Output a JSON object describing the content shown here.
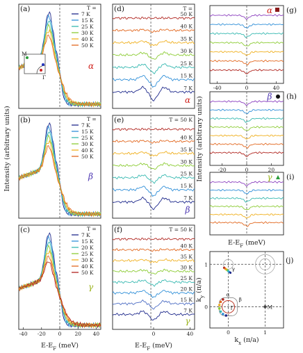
{
  "colors": {
    "series": [
      "#1f2a8c",
      "#2f8fd8",
      "#35b8b0",
      "#8ccc34",
      "#f0b020",
      "#e2671e",
      "#b0241e"
    ],
    "alpha": "#d0231e",
    "beta": "#4a33b0",
    "gamma": "#9ab21a"
  },
  "shared": {
    "y_label_main": "Intensity (arbitrary units)",
    "y_label_right": "Intensity (arbitrary units)",
    "x_label": "E-E_F (meV)",
    "x_label_right": "E-E_F (meV)"
  },
  "chart_data": [
    {
      "panel": "(a)",
      "type": "line",
      "band": "α",
      "legend_title": "T =",
      "series": [
        {
          "name": "7 K"
        },
        {
          "name": "15 K"
        },
        {
          "name": "25 K"
        },
        {
          "name": "30 K"
        },
        {
          "name": "40 K"
        },
        {
          "name": "50 K"
        }
      ],
      "xlim": [
        -45,
        45
      ],
      "peak_energy": -12,
      "inset_labels": [
        "M",
        "Γ"
      ]
    },
    {
      "panel": "(b)",
      "type": "line",
      "band": "β",
      "legend_title": "T =",
      "series": [
        {
          "name": "7 K"
        },
        {
          "name": "15 K"
        },
        {
          "name": "25 K"
        },
        {
          "name": "30 K"
        },
        {
          "name": "40 K"
        },
        {
          "name": "50 K"
        }
      ],
      "xlim": [
        -45,
        45
      ],
      "peak_energy": -12
    },
    {
      "panel": "(c)",
      "type": "line",
      "band": "γ",
      "legend_title": "T =",
      "series": [
        {
          "name": "7 K"
        },
        {
          "name": "15 K"
        },
        {
          "name": "20 K"
        },
        {
          "name": "25 K"
        },
        {
          "name": "30 K"
        },
        {
          "name": "40 K"
        },
        {
          "name": "50 K"
        }
      ],
      "xlim": [
        -45,
        45
      ],
      "x_ticks": [
        -40,
        -20,
        0,
        20,
        40
      ],
      "peak_energy": -12
    },
    {
      "panel": "(d)",
      "type": "line",
      "band": "α",
      "legend_title": "T =",
      "series": [
        {
          "name": "50 K"
        },
        {
          "name": "40 K"
        },
        {
          "name": "35 K"
        },
        {
          "name": "30 K"
        },
        {
          "name": "25 K"
        },
        {
          "name": "15 K"
        },
        {
          "name": "7 K"
        }
      ],
      "xlim": [
        -45,
        45
      ]
    },
    {
      "panel": "(e)",
      "type": "line",
      "band": "β",
      "legend_title": "T = 50 K",
      "series": [
        {
          "name": "50 K"
        },
        {
          "name": "40 K"
        },
        {
          "name": "35 K"
        },
        {
          "name": "30 K"
        },
        {
          "name": "25 K"
        },
        {
          "name": "15 K"
        },
        {
          "name": "7 K"
        }
      ],
      "xlim": [
        -45,
        45
      ]
    },
    {
      "panel": "(f)",
      "type": "line",
      "band": "γ",
      "legend_title": "T = 50 K",
      "series": [
        {
          "name": "50 K"
        },
        {
          "name": "40 K"
        },
        {
          "name": "35 K"
        },
        {
          "name": "30 K"
        },
        {
          "name": "25 K"
        },
        {
          "name": "20 K"
        },
        {
          "name": "15 K"
        },
        {
          "name": "7 K"
        }
      ],
      "xlim": [
        -45,
        45
      ],
      "x_ticks": [
        0,
        40
      ]
    },
    {
      "panel": "(g)",
      "type": "line",
      "band": "α",
      "xlim": [
        -50,
        50
      ],
      "x_ticks": [
        -40,
        0,
        40
      ],
      "n_curves": 7
    },
    {
      "panel": "(h)",
      "type": "line",
      "band": "β",
      "xlim": [
        -30,
        30
      ],
      "x_ticks": [
        -20,
        0,
        20
      ],
      "n_curves": 7
    },
    {
      "panel": "(i)",
      "type": "line",
      "band": "γ",
      "xlim": [
        -30,
        30
      ],
      "n_curves": 6
    },
    {
      "panel": "(j)",
      "type": "scatter",
      "xlabel": "k_x (π/a)",
      "ylabel": "k_y (π/a)",
      "xlim": [
        -0.5,
        1.5
      ],
      "ylim": [
        -0.5,
        1.3
      ],
      "x_ticks": [
        0,
        1
      ],
      "y_ticks": [
        0,
        1
      ],
      "labels": [
        "Γ",
        "M",
        "α",
        "β",
        "γ"
      ]
    }
  ]
}
